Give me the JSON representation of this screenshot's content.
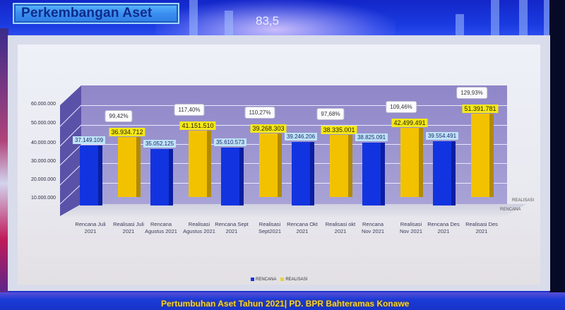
{
  "header": {
    "title": "Perkembangan Aset",
    "background_number": "83,5"
  },
  "footer": {
    "text": "Pertumbuhan Aset Tahun 2021|  PD. BPR Bahteramas Konawe"
  },
  "colors": {
    "rencana": "#1234e0",
    "realisasi": "#f2c200",
    "title_text": "#0f2b8a",
    "footer_text": "#f1d23a"
  },
  "chart": {
    "y_ticks": [
      "60.000.000",
      "50.000.000",
      "40.000.000",
      "30.000.000",
      "20.000.000",
      "10.000.000"
    ],
    "axis_series_labels": [
      "REALISASI",
      "RENCANA"
    ],
    "legend": [
      "RENCANA",
      "REALISASI"
    ],
    "bars": [
      {
        "category": "Rencana Juli 2021",
        "label_l1": "Rencana Juli",
        "label_l2": "2021",
        "value_label": "37.149.109"
      },
      {
        "category": "Realisasi Juli 2021",
        "label_l1": "Realisasi Juli",
        "label_l2": "2021",
        "value_label": "36.934.712",
        "pct": "99,42%"
      },
      {
        "category": "Rencana Agustus 2021",
        "label_l1": "Rencana",
        "label_l2": "Agustus 2021",
        "value_label": "35.052.125"
      },
      {
        "category": "Realisasi Agustus 2021",
        "label_l1": "Realisasi",
        "label_l2": "Agustus 2021",
        "value_label": "41.151.510",
        "pct": "117,40%"
      },
      {
        "category": "Rencana Sept 2021",
        "label_l1": "Rencana Sept",
        "label_l2": "2021",
        "value_label": "35.610.573"
      },
      {
        "category": "Realisasi Sept2021",
        "label_l1": "Realisasi",
        "label_l2": "Sept2021",
        "value_label": "39.268.303",
        "pct": "110,27%"
      },
      {
        "category": "Rencana Okt 2021",
        "label_l1": "Rencana Okt",
        "label_l2": "2021",
        "value_label": "39.246.206"
      },
      {
        "category": "Realisasi okt 2021",
        "label_l1": "Realisasi okt",
        "label_l2": "2021",
        "value_label": "38.335.001",
        "pct": "97,68%"
      },
      {
        "category": "Rencana Nov 2021",
        "label_l1": "Rencana",
        "label_l2": "Nov 2021",
        "value_label": "38.825.091"
      },
      {
        "category": "Realisasi Nov 2021",
        "label_l1": "Realisasi",
        "label_l2": "Nov 2021",
        "value_label": "42.499.491",
        "pct": "109,46%"
      },
      {
        "category": "Rencana Des 2021",
        "label_l1": "Rencana  Des",
        "label_l2": "2021",
        "value_label": "39.554.491"
      },
      {
        "category": "Realisasi Des 2021",
        "label_l1": "Realisasi  Des",
        "label_l2": "2021",
        "value_label": "51.391.781",
        "pct": "129,93%"
      }
    ]
  },
  "chart_data": {
    "type": "bar",
    "title": "Perkembangan Aset",
    "subtitle": "Pertumbuhan Aset Tahun 2021 | PD. BPR Bahteramas Konawe",
    "categories": [
      "Juli 2021",
      "Agustus 2021",
      "Sept 2021",
      "Okt 2021",
      "Nov 2021",
      "Des 2021"
    ],
    "series": [
      {
        "name": "RENCANA",
        "values": [
          37149109,
          35052125,
          35610573,
          39246206,
          38825091,
          39554491
        ]
      },
      {
        "name": "REALISASI",
        "values": [
          36934712,
          41151510,
          39268303,
          38335001,
          42499491,
          51391781
        ]
      }
    ],
    "annotations": {
      "achievement_pct": [
        "99,42%",
        "117,40%",
        "110,27%",
        "97,68%",
        "109,46%",
        "129,93%"
      ]
    },
    "xlabel": "",
    "ylabel": "",
    "ylim": [
      0,
      60000000
    ],
    "yticks": [
      10000000,
      20000000,
      30000000,
      40000000,
      50000000,
      60000000
    ],
    "grid": true,
    "legend_position": "bottom",
    "style": "3d-clustered-column"
  }
}
